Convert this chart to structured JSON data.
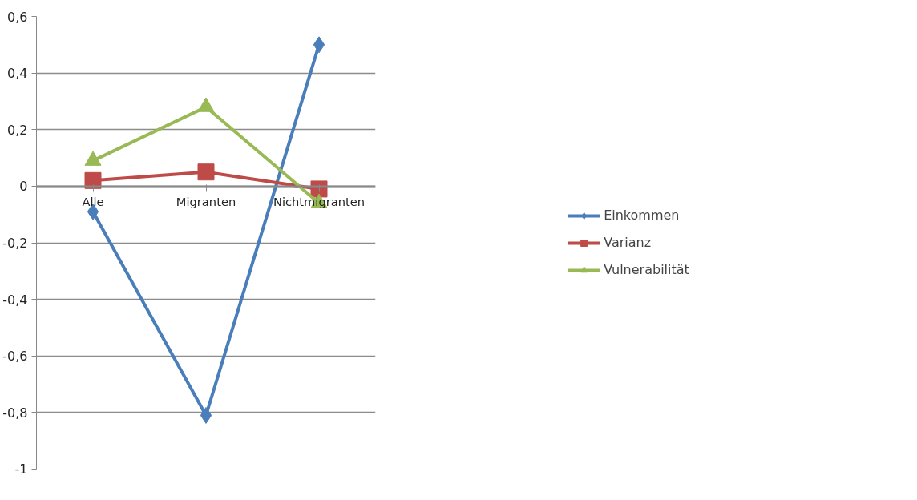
{
  "chart_data": {
    "type": "line",
    "categories": [
      "Alle",
      "Migranten",
      "Nichtmigranten"
    ],
    "series": [
      {
        "name": "Einkommen",
        "color": "#4a7ebb",
        "values": [
          -0.09,
          -0.81,
          0.5
        ],
        "marker": "diamond"
      },
      {
        "name": "Varianz",
        "color": "#be4b48",
        "values": [
          0.02,
          0.05,
          -0.01
        ],
        "marker": "square"
      },
      {
        "name": "Vulnerabilität",
        "color": "#98b954",
        "values": [
          0.09,
          0.28,
          -0.06
        ],
        "marker": "triangle"
      }
    ],
    "ylim": [
      -1,
      0.6
    ],
    "yticks": [
      {
        "value": -1,
        "label": "-1"
      },
      {
        "value": -0.8,
        "label": "-0,8"
      },
      {
        "value": -0.6,
        "label": "-0,6"
      },
      {
        "value": -0.4,
        "label": "-0,4"
      },
      {
        "value": -0.2,
        "label": "-0,2"
      },
      {
        "value": 0,
        "label": "0"
      },
      {
        "value": 0.2,
        "label": "0,2"
      },
      {
        "value": 0.4,
        "label": "0,4"
      },
      {
        "value": 0.6,
        "label": "0,6"
      }
    ],
    "grid": "y",
    "legend": "right",
    "line_style": "solid"
  }
}
